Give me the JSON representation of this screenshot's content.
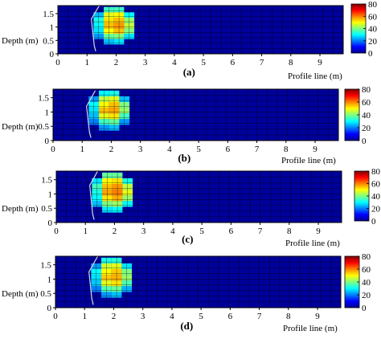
{
  "figure": {
    "colors": {
      "background_cell": "#0a0a8c",
      "grid_line": "#000000",
      "outline": "#d8d8d8",
      "colormap": [
        "#00008f",
        "#0000ff",
        "#0080ff",
        "#00ffff",
        "#80ff80",
        "#ffff00",
        "#ff8000",
        "#ff0000",
        "#800000"
      ]
    }
  },
  "chart_data": [
    {
      "type": "heatmap",
      "panel_label": "(a)",
      "xlabel": "Profile line (m)",
      "ylabel": "Depth (m)",
      "xticks": [
        "0",
        "1",
        "2",
        "3",
        "4",
        "5",
        "6",
        "7",
        "8",
        "9"
      ],
      "yticks": [
        "1.5",
        "1",
        "0.5",
        "0"
      ],
      "xlim": [
        0,
        9.8
      ],
      "ylim": [
        0,
        1.8
      ],
      "y_reversed": true,
      "grid": true,
      "colorbar": {
        "ticks": [
          "80",
          "60",
          "40",
          "20",
          "0"
        ],
        "range": [
          0,
          80
        ]
      },
      "cell_size": [
        0.35,
        0.2
      ],
      "background_value": 1,
      "anomaly_cells": [
        [
          1.75,
          0.15,
          35
        ],
        [
          2.1,
          0.15,
          35
        ],
        [
          1.4,
          0.35,
          25
        ],
        [
          1.75,
          0.35,
          48
        ],
        [
          2.1,
          0.35,
          50
        ],
        [
          2.45,
          0.35,
          30
        ],
        [
          1.4,
          0.55,
          32
        ],
        [
          1.75,
          0.55,
          52
        ],
        [
          2.1,
          0.55,
          55
        ],
        [
          2.45,
          0.55,
          42
        ],
        [
          1.4,
          0.75,
          30
        ],
        [
          1.75,
          0.75,
          55
        ],
        [
          2.1,
          0.75,
          58
        ],
        [
          2.45,
          0.75,
          45
        ],
        [
          1.4,
          0.95,
          28
        ],
        [
          1.75,
          0.95,
          50
        ],
        [
          2.1,
          0.95,
          55
        ],
        [
          2.45,
          0.95,
          40
        ],
        [
          1.4,
          1.15,
          22
        ],
        [
          1.75,
          1.15,
          38
        ],
        [
          2.1,
          1.15,
          40
        ],
        [
          2.45,
          1.15,
          28
        ],
        [
          1.75,
          1.35,
          25
        ],
        [
          2.1,
          1.35,
          28
        ]
      ],
      "outline": [
        [
          1.45,
          1.85
        ],
        [
          1.15,
          1.3
        ],
        [
          1.25,
          0.3
        ],
        [
          1.3,
          0.1
        ]
      ]
    },
    {
      "type": "heatmap",
      "panel_label": "(b)",
      "xlabel": "Profile line (m)",
      "ylabel": "Depth (m)",
      "xticks": [
        "0",
        "1",
        "2",
        "3",
        "4",
        "5",
        "6",
        "7",
        "8",
        "9"
      ],
      "yticks": [
        "1.5",
        "1",
        "0.5",
        "0"
      ],
      "xlim": [
        0,
        9.8
      ],
      "ylim": [
        0,
        1.8
      ],
      "y_reversed": true,
      "grid": true,
      "colorbar": {
        "ticks": [
          "80",
          "60",
          "40",
          "20",
          "0"
        ],
        "range": [
          0,
          80
        ]
      },
      "cell_size": [
        0.35,
        0.2
      ],
      "background_value": 1,
      "anomaly_cells": [
        [
          1.75,
          0.15,
          30
        ],
        [
          2.1,
          0.15,
          32
        ],
        [
          1.4,
          0.35,
          22
        ],
        [
          1.75,
          0.35,
          45
        ],
        [
          2.1,
          0.35,
          48
        ],
        [
          2.45,
          0.35,
          25
        ],
        [
          1.4,
          0.55,
          30
        ],
        [
          1.75,
          0.55,
          50
        ],
        [
          2.1,
          0.55,
          55
        ],
        [
          2.45,
          0.55,
          40
        ],
        [
          1.4,
          0.75,
          28
        ],
        [
          1.75,
          0.75,
          55
        ],
        [
          2.1,
          0.75,
          57
        ],
        [
          2.45,
          0.75,
          42
        ],
        [
          1.4,
          0.95,
          25
        ],
        [
          1.75,
          0.95,
          48
        ],
        [
          2.1,
          0.95,
          52
        ],
        [
          2.45,
          0.95,
          35
        ],
        [
          1.4,
          1.15,
          20
        ],
        [
          1.75,
          1.15,
          35
        ],
        [
          2.1,
          1.15,
          38
        ],
        [
          2.45,
          1.15,
          22
        ],
        [
          1.75,
          1.35,
          22
        ],
        [
          2.1,
          1.35,
          25
        ]
      ],
      "outline": [
        [
          1.45,
          1.75
        ],
        [
          1.15,
          1.2
        ],
        [
          1.25,
          0.3
        ],
        [
          1.3,
          0.1
        ]
      ]
    },
    {
      "type": "heatmap",
      "panel_label": "(c)",
      "xlabel": "Profile line (m)",
      "ylabel": "Depth (m)",
      "xticks": [
        "0",
        "1",
        "2",
        "3",
        "4",
        "5",
        "6",
        "7",
        "8",
        "9"
      ],
      "yticks": [
        "1.5",
        "1",
        "0.5",
        "0"
      ],
      "xlim": [
        0,
        9.8
      ],
      "ylim": [
        0,
        1.8
      ],
      "y_reversed": true,
      "grid": true,
      "colorbar": {
        "ticks": [
          "80",
          "60",
          "40",
          "20",
          "0"
        ],
        "range": [
          0,
          80
        ]
      },
      "cell_size": [
        0.35,
        0.2
      ],
      "background_value": 1,
      "anomaly_cells": [
        [
          1.75,
          0.15,
          38
        ],
        [
          2.1,
          0.15,
          38
        ],
        [
          1.4,
          0.35,
          28
        ],
        [
          1.75,
          0.35,
          50
        ],
        [
          2.1,
          0.35,
          52
        ],
        [
          2.45,
          0.35,
          32
        ],
        [
          1.4,
          0.55,
          35
        ],
        [
          1.75,
          0.55,
          55
        ],
        [
          2.1,
          0.55,
          58
        ],
        [
          2.45,
          0.55,
          45
        ],
        [
          1.4,
          0.75,
          32
        ],
        [
          1.75,
          0.75,
          57
        ],
        [
          2.1,
          0.75,
          60
        ],
        [
          2.45,
          0.75,
          48
        ],
        [
          1.4,
          0.95,
          30
        ],
        [
          1.75,
          0.95,
          52
        ],
        [
          2.1,
          0.95,
          56
        ],
        [
          2.45,
          0.95,
          42
        ],
        [
          1.4,
          1.15,
          25
        ],
        [
          1.75,
          1.15,
          40
        ],
        [
          2.1,
          1.15,
          42
        ],
        [
          2.45,
          1.15,
          30
        ],
        [
          1.75,
          1.35,
          28
        ],
        [
          2.1,
          1.35,
          30
        ]
      ],
      "outline": [
        [
          1.45,
          1.85
        ],
        [
          1.15,
          1.3
        ],
        [
          1.25,
          0.3
        ],
        [
          1.3,
          0.1
        ]
      ]
    },
    {
      "type": "heatmap",
      "panel_label": "(d)",
      "xlabel": "Profile line (m)",
      "ylabel": "Depth (m)",
      "xticks": [
        "0",
        "1",
        "2",
        "3",
        "4",
        "5",
        "6",
        "7",
        "8",
        "9"
      ],
      "yticks": [
        "1.5",
        "1",
        "0.5",
        "0"
      ],
      "xlim": [
        0,
        9.8
      ],
      "ylim": [
        0,
        1.8
      ],
      "y_reversed": true,
      "grid": true,
      "colorbar": {
        "ticks": [
          "80",
          "60",
          "40",
          "20",
          "0"
        ],
        "range": [
          0,
          80
        ]
      },
      "cell_size": [
        0.35,
        0.2
      ],
      "background_value": 1,
      "anomaly_cells": [
        [
          1.75,
          0.15,
          32
        ],
        [
          2.1,
          0.15,
          33
        ],
        [
          1.4,
          0.35,
          22
        ],
        [
          1.75,
          0.35,
          46
        ],
        [
          2.1,
          0.35,
          48
        ],
        [
          2.45,
          0.35,
          28
        ],
        [
          1.4,
          0.55,
          30
        ],
        [
          1.75,
          0.55,
          50
        ],
        [
          2.1,
          0.55,
          54
        ],
        [
          2.45,
          0.55,
          40
        ],
        [
          1.4,
          0.75,
          28
        ],
        [
          1.75,
          0.75,
          54
        ],
        [
          2.1,
          0.75,
          56
        ],
        [
          2.45,
          0.75,
          42
        ],
        [
          1.4,
          0.95,
          26
        ],
        [
          1.75,
          0.95,
          48
        ],
        [
          2.1,
          0.95,
          52
        ],
        [
          2.45,
          0.95,
          36
        ],
        [
          1.4,
          1.15,
          20
        ],
        [
          1.75,
          1.15,
          36
        ],
        [
          2.1,
          1.15,
          38
        ],
        [
          2.45,
          1.15,
          24
        ],
        [
          1.75,
          1.35,
          22
        ],
        [
          2.1,
          1.35,
          25
        ]
      ],
      "outline": [
        [
          1.45,
          1.8
        ],
        [
          1.15,
          1.25
        ],
        [
          1.25,
          0.3
        ],
        [
          1.3,
          0.1
        ]
      ]
    }
  ]
}
